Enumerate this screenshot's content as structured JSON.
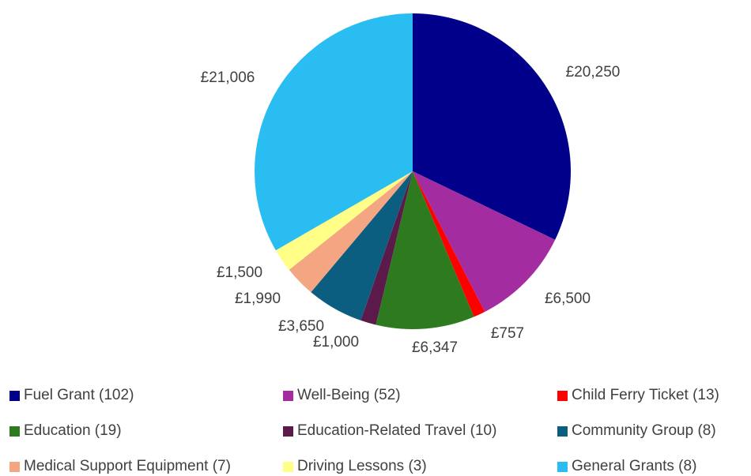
{
  "chart_data": {
    "type": "pie",
    "title": "",
    "legend_position": "bottom",
    "start_angle_deg": 0,
    "direction": "clockwise",
    "slices": [
      {
        "label": "Fuel Grant (102)",
        "value": 20250,
        "value_label": "£20,250",
        "color": "#00008B"
      },
      {
        "label": "Well-Being (52)",
        "value": 6500,
        "value_label": "£6,500",
        "color": "#A32CA0"
      },
      {
        "label": "Child Ferry Ticket (13)",
        "value": 757,
        "value_label": "£757",
        "color": "#FF0000"
      },
      {
        "label": "Education (19)",
        "value": 6347,
        "value_label": "£6,347",
        "color": "#2E7B1F"
      },
      {
        "label": "Education-Related Travel (10)",
        "value": 1000,
        "value_label": "£1,000",
        "color": "#5C1A4A"
      },
      {
        "label": "Community Group (8)",
        "value": 3650,
        "value_label": "£3,650",
        "color": "#0B5E80"
      },
      {
        "label": "Medical Support Equipment (7)",
        "value": 1990,
        "value_label": "£1,990",
        "color": "#F4A582"
      },
      {
        "label": "Driving Lessons (3)",
        "value": 1500,
        "value_label": "£1,500",
        "color": "#FFFF88"
      },
      {
        "label": "General Grants (8)",
        "value": 21006,
        "value_label": "£21,006",
        "color": "#29BDF2"
      }
    ]
  }
}
